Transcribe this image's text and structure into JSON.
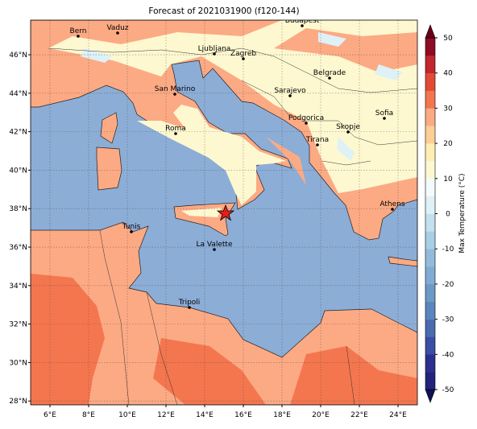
{
  "title": "Forecast of 2021031900 (f120-144)",
  "cities": [
    "Bern",
    "Vaduz",
    "Budapest",
    "Ljubljana",
    "Zagreb",
    "Belgrade",
    "San Marino",
    "Sarajevo",
    "Sofia",
    "Roma",
    "Podgorica",
    "Skopje",
    "Tirana",
    "Athens",
    "Tunis",
    "La Valette",
    "Tripoli"
  ],
  "lon_lim": [
    5,
    25
  ],
  "lon_ticks": [
    {
      "value": 6,
      "label": "6°E"
    },
    {
      "value": 8,
      "label": "8°E"
    },
    {
      "value": 10,
      "label": "10°E"
    },
    {
      "value": 12,
      "label": "12°E"
    },
    {
      "value": 14,
      "label": "14°E"
    },
    {
      "value": 16,
      "label": "16°E"
    },
    {
      "value": 18,
      "label": "18°E"
    },
    {
      "value": 20,
      "label": "20°E"
    },
    {
      "value": 22,
      "label": "22°E"
    },
    {
      "value": 24,
      "label": "24°E"
    }
  ],
  "lat_lim": [
    27.8,
    47.8
  ],
  "lat_ticks": [
    {
      "value": 28,
      "label": "28°N"
    },
    {
      "value": 30,
      "label": "30°N"
    },
    {
      "value": 32,
      "label": "32°N"
    },
    {
      "value": 34,
      "label": "34°N"
    },
    {
      "value": 36,
      "label": "36°N"
    },
    {
      "value": 38,
      "label": "38°N"
    },
    {
      "value": 40,
      "label": "40°N"
    },
    {
      "value": 42,
      "label": "42°N"
    },
    {
      "value": 44,
      "label": "44°N"
    },
    {
      "value": 46,
      "label": "46°N"
    }
  ],
  "grid": true,
  "colorbar": {
    "label": "Max Temperature (°C)",
    "lim": [
      -50,
      50
    ],
    "ticks": [
      -50,
      -40,
      -30,
      -20,
      -10,
      0,
      10,
      20,
      30,
      40,
      50
    ],
    "colors": [
      "#23237a",
      "#2c2f8f",
      "#3a4ea3",
      "#4a6bb0",
      "#5a86bf",
      "#6a9ac8",
      "#80acd3",
      "#92bbdb",
      "#a8cfe5",
      "#c2e0ee",
      "#def1f6",
      "#f3fbfc",
      "#fef8d0",
      "#fdefb4",
      "#fdcf95",
      "#fcaa84",
      "#f4764f",
      "#e24a33",
      "#c1272d",
      "#8e0c25"
    ],
    "extend_colors": [
      "#0f1257",
      "#6b0019"
    ]
  }
}
